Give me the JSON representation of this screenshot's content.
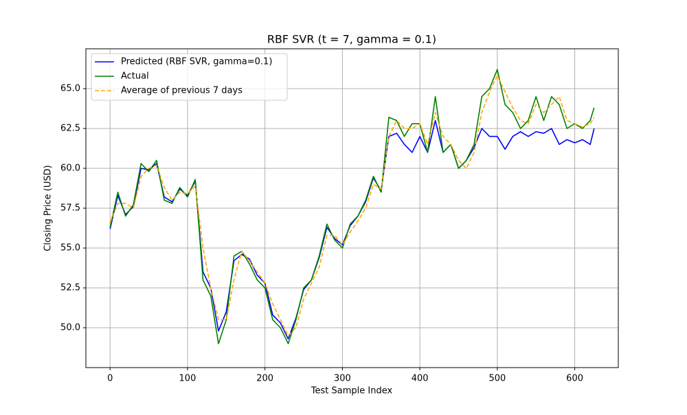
{
  "chart_data": {
    "type": "line",
    "title": "RBF SVR (t = 7, gamma = 0.1)",
    "x_label": "Test Sample Index",
    "y_label": "Closing Price (USD)",
    "x": [
      0,
      10,
      20,
      30,
      40,
      50,
      60,
      70,
      80,
      90,
      100,
      110,
      120,
      130,
      140,
      150,
      160,
      170,
      180,
      190,
      200,
      210,
      220,
      230,
      240,
      250,
      260,
      270,
      280,
      290,
      300,
      310,
      320,
      330,
      340,
      350,
      360,
      370,
      380,
      390,
      400,
      410,
      420,
      430,
      440,
      450,
      460,
      470,
      480,
      490,
      500,
      510,
      520,
      530,
      540,
      550,
      560,
      570,
      580,
      590,
      600,
      610,
      620,
      625
    ],
    "series": [
      {
        "name": "Predicted (RBF SVR, gamma=0.1)",
        "color": "#0000ff",
        "linestyle": "solid",
        "values": [
          56.2,
          58.3,
          57.1,
          57.6,
          60.0,
          59.9,
          60.3,
          58.2,
          57.9,
          58.7,
          58.3,
          59.2,
          53.5,
          52.5,
          49.8,
          51.0,
          54.2,
          54.6,
          54.3,
          53.3,
          52.8,
          50.8,
          50.3,
          49.3,
          50.6,
          52.4,
          53.0,
          54.4,
          56.3,
          55.6,
          55.2,
          56.4,
          57.0,
          57.9,
          59.4,
          58.6,
          62.0,
          62.2,
          61.5,
          61.0,
          62.0,
          61.0,
          63.0,
          61.0,
          61.5,
          60.0,
          60.5,
          61.3,
          62.5,
          62.0,
          62.0,
          61.2,
          62.0,
          62.3,
          62.0,
          62.3,
          62.2,
          62.5,
          61.5,
          61.8,
          61.6,
          61.8,
          61.5,
          62.5
        ]
      },
      {
        "name": "Actual",
        "color": "#008000",
        "linestyle": "solid",
        "values": [
          56.3,
          58.5,
          57.0,
          57.7,
          60.3,
          59.8,
          60.5,
          58.0,
          57.8,
          58.8,
          58.2,
          59.3,
          53.0,
          52.0,
          49.0,
          50.5,
          54.5,
          54.8,
          54.0,
          53.0,
          52.5,
          50.5,
          50.0,
          49.0,
          50.5,
          52.5,
          53.0,
          54.5,
          56.5,
          55.5,
          55.0,
          56.5,
          57.0,
          58.0,
          59.5,
          58.5,
          63.2,
          63.0,
          62.0,
          62.8,
          62.8,
          61.0,
          64.5,
          61.0,
          61.5,
          60.0,
          60.5,
          61.5,
          64.5,
          65.0,
          66.2,
          64.0,
          63.5,
          62.5,
          63.0,
          64.5,
          63.0,
          64.5,
          64.0,
          62.5,
          62.8,
          62.5,
          63.0,
          63.8
        ]
      },
      {
        "name": "Average of previous 7 days",
        "color": "#ffa500",
        "linestyle": "dashed",
        "values": [
          56.6,
          57.8,
          57.8,
          57.5,
          59.5,
          60.0,
          60.2,
          58.8,
          58.0,
          58.5,
          58.4,
          58.9,
          55.0,
          52.5,
          50.5,
          50.5,
          53.0,
          54.8,
          54.2,
          53.5,
          52.8,
          51.5,
          50.5,
          49.5,
          50.0,
          51.8,
          52.8,
          53.8,
          55.8,
          55.8,
          55.2,
          56.0,
          56.7,
          57.5,
          59.0,
          58.7,
          62.0,
          63.0,
          62.5,
          62.5,
          62.8,
          61.5,
          63.5,
          62.0,
          61.5,
          60.5,
          60.0,
          61.0,
          63.5,
          64.8,
          65.8,
          64.8,
          63.8,
          63.0,
          62.8,
          64.0,
          63.5,
          64.0,
          64.5,
          63.0,
          62.8,
          62.6,
          62.8,
          63.2
        ]
      }
    ],
    "xlim": [
      -31.25,
      656.25
    ],
    "ylim": [
      47.5,
      67.5
    ],
    "xticks": [
      0,
      100,
      200,
      300,
      400,
      500,
      600
    ],
    "yticks": [
      {
        "value": 50,
        "label": "50.0"
      },
      {
        "value": 52.5,
        "label": "52.5"
      },
      {
        "value": 55,
        "label": "55.0"
      },
      {
        "value": 57.5,
        "label": "57.5"
      },
      {
        "value": 60,
        "label": "60.0"
      },
      {
        "value": 62.5,
        "label": "62.5"
      },
      {
        "value": 65,
        "label": "65.0"
      }
    ],
    "grid": true,
    "legend": "upper left"
  }
}
